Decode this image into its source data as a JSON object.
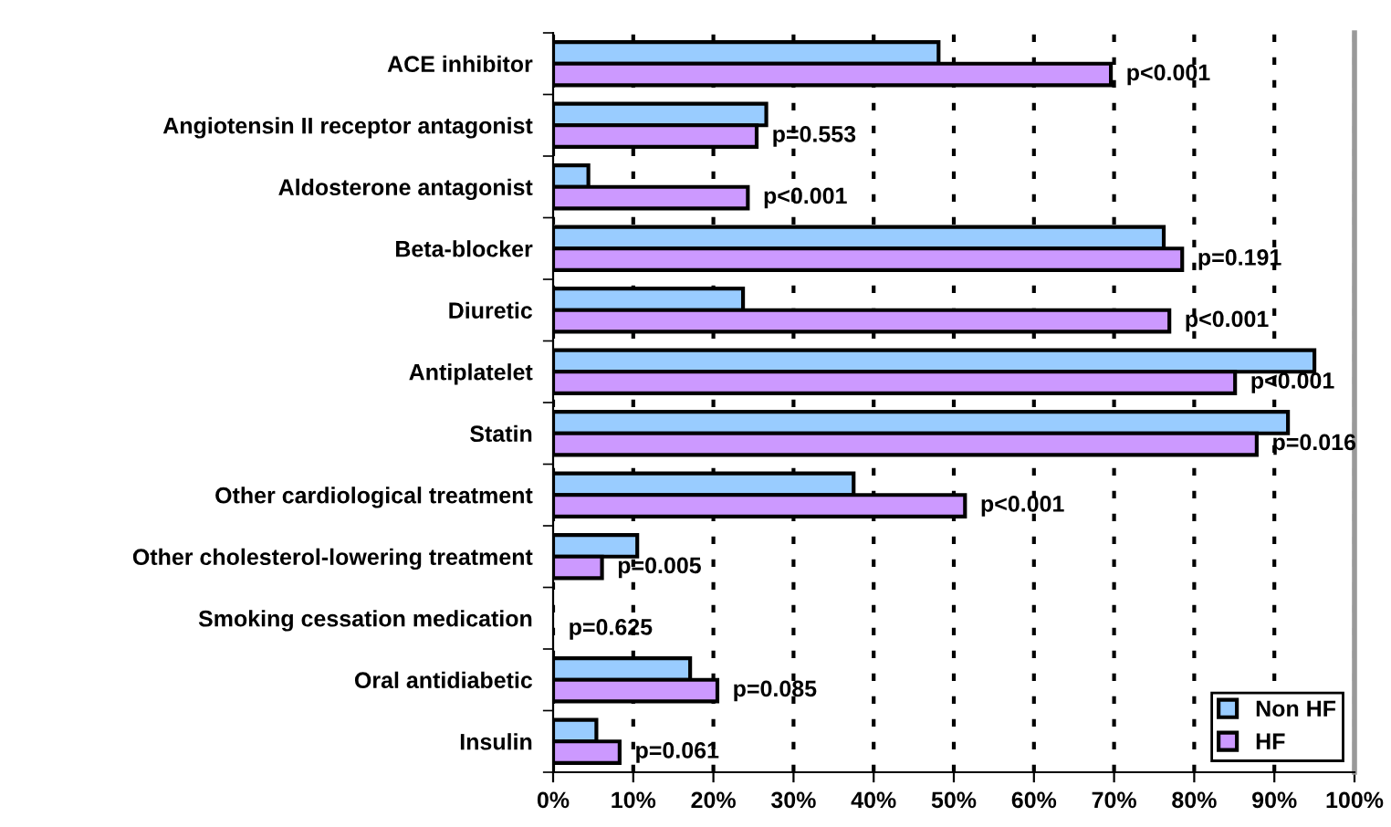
{
  "chart_data": {
    "type": "bar",
    "orientation": "horizontal",
    "categories": [
      "ACE inhibitor",
      "Angiotensin II receptor antagonist",
      "Aldosterone antagonist",
      "Beta-blocker",
      "Diuretic",
      "Antiplatelet",
      "Statin",
      "Other cardiological treatment",
      "Other cholesterol-lowering treatment",
      "Smoking cessation medication",
      "Oral antidiabetic",
      "Insulin"
    ],
    "series": [
      {
        "name": "Non HF",
        "color": "#99ccff",
        "values": [
          48.1,
          26.6,
          4.4,
          76.2,
          23.7,
          95.0,
          91.7,
          37.5,
          10.5,
          0,
          17.1,
          5.4
        ]
      },
      {
        "name": "HF",
        "color": "#cc99ff",
        "values": [
          69.6,
          25.4,
          24.3,
          78.5,
          76.9,
          85.1,
          87.8,
          51.4,
          6.1,
          0,
          20.5,
          8.3
        ]
      }
    ],
    "xlim": [
      0,
      100
    ],
    "xticks": [
      {
        "value": 0,
        "label": "0%"
      },
      {
        "value": 10,
        "label": "10%"
      },
      {
        "value": 20,
        "label": "20%"
      },
      {
        "value": 30,
        "label": "30%"
      },
      {
        "value": 40,
        "label": "40%"
      },
      {
        "value": 50,
        "label": "50%"
      },
      {
        "value": 60,
        "label": "60%"
      },
      {
        "value": 70,
        "label": "70%"
      },
      {
        "value": 80,
        "label": "80%"
      },
      {
        "value": 90,
        "label": "90%"
      },
      {
        "value": 100,
        "label": "100%"
      }
    ],
    "grid": "x",
    "legend": "bottom right",
    "annotations": [
      "p<0.001",
      "p=0.553",
      "p<0.001",
      "p=0.191",
      "p<0.001",
      "p<0.001",
      "p=0.016",
      "p<0.001",
      "p=0.005",
      "p=0.625",
      "p=0.085",
      "p=0.061"
    ]
  }
}
